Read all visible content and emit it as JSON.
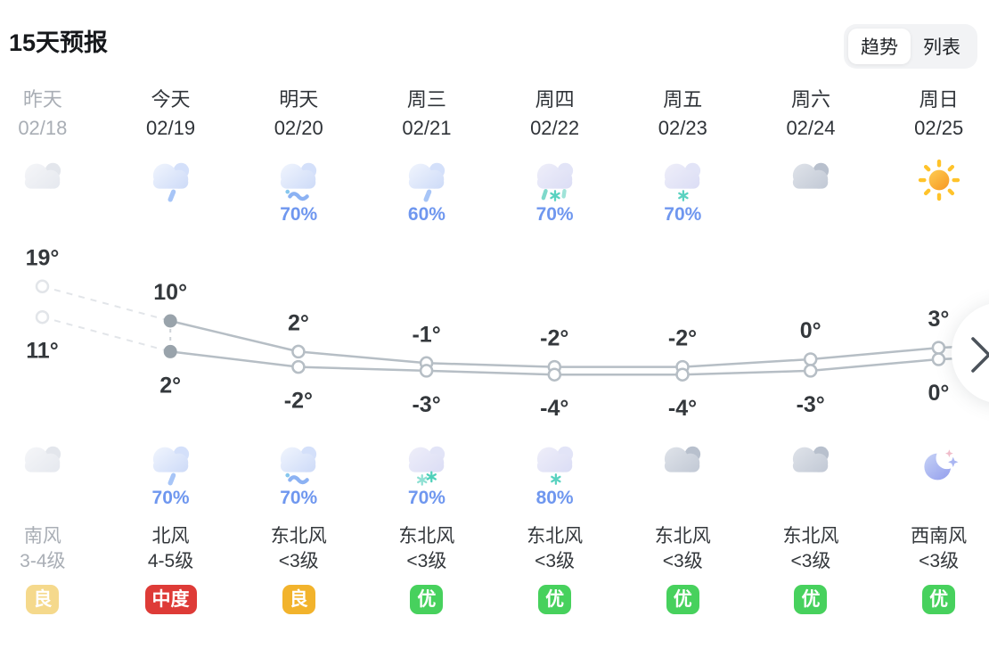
{
  "header": {
    "title": "15天预报",
    "view_toggle": {
      "options": [
        "趋势",
        "列表"
      ],
      "selected": "趋势",
      "selected_index": 0
    }
  },
  "columns": [
    {
      "day": "昨天",
      "date": "02/18",
      "muted": true,
      "day_icon": "cloudy-light",
      "day_precip": "",
      "night_icon": "cloudy-light",
      "night_precip": "",
      "wind_dir": "南风",
      "wind_level": "3-4级",
      "aqi": {
        "label": "良",
        "color": "#f5d98c"
      }
    },
    {
      "day": "今天",
      "date": "02/19",
      "muted": false,
      "day_icon": "rain",
      "day_precip": "",
      "night_icon": "rain",
      "night_precip": "70%",
      "wind_dir": "北风",
      "wind_level": "4-5级",
      "aqi": {
        "label": "中度",
        "color": "#de3b37"
      }
    },
    {
      "day": "明天",
      "date": "02/20",
      "muted": false,
      "day_icon": "sleet",
      "day_precip": "70%",
      "night_icon": "sleet",
      "night_precip": "70%",
      "wind_dir": "东北风",
      "wind_level": "<3级",
      "aqi": {
        "label": "良",
        "color": "#f2b32c"
      }
    },
    {
      "day": "周三",
      "date": "02/21",
      "muted": false,
      "day_icon": "rain",
      "day_precip": "60%",
      "night_icon": "snow-2",
      "night_precip": "70%",
      "wind_dir": "东北风",
      "wind_level": "<3级",
      "aqi": {
        "label": "优",
        "color": "#47d15d"
      }
    },
    {
      "day": "周四",
      "date": "02/22",
      "muted": false,
      "day_icon": "rain-snow",
      "day_precip": "70%",
      "night_icon": "snow-1",
      "night_precip": "80%",
      "wind_dir": "东北风",
      "wind_level": "<3级",
      "aqi": {
        "label": "优",
        "color": "#47d15d"
      }
    },
    {
      "day": "周五",
      "date": "02/23",
      "muted": false,
      "day_icon": "snow-1",
      "day_precip": "70%",
      "night_icon": "cloudy",
      "night_precip": "",
      "wind_dir": "东北风",
      "wind_level": "<3级",
      "aqi": {
        "label": "优",
        "color": "#47d15d"
      }
    },
    {
      "day": "周六",
      "date": "02/24",
      "muted": false,
      "day_icon": "cloudy",
      "day_precip": "",
      "night_icon": "cloudy",
      "night_precip": "",
      "wind_dir": "东北风",
      "wind_level": "<3级",
      "aqi": {
        "label": "优",
        "color": "#47d15d"
      }
    },
    {
      "day": "周日",
      "date": "02/25",
      "muted": false,
      "day_icon": "sunny",
      "day_precip": "",
      "night_icon": "clear-night",
      "night_precip": "",
      "wind_dir": "西南风",
      "wind_level": "<3级",
      "aqi": {
        "label": "优",
        "color": "#47d15d"
      }
    }
  ],
  "chart_data": {
    "type": "line",
    "categories": [
      "昨天",
      "今天",
      "明天",
      "周三",
      "周四",
      "周五",
      "周六",
      "周日"
    ],
    "series": [
      {
        "name": "high",
        "values": [
          19,
          10,
          2,
          -1,
          -2,
          -2,
          0,
          3
        ]
      },
      {
        "name": "low",
        "values": [
          11,
          2,
          -2,
          -3,
          -4,
          -4,
          -3,
          0
        ]
      }
    ],
    "unit": "°",
    "line_color": "#b6bec5",
    "label_color": "#34383c"
  },
  "next_button": {
    "icon": "chevron-right"
  }
}
